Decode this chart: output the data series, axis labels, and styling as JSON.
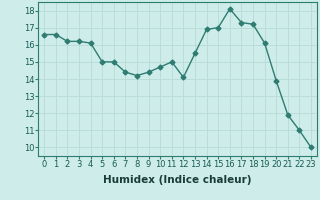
{
  "x": [
    0,
    1,
    2,
    3,
    4,
    5,
    6,
    7,
    8,
    9,
    10,
    11,
    12,
    13,
    14,
    15,
    16,
    17,
    18,
    19,
    20,
    21,
    22,
    23
  ],
  "y": [
    16.6,
    16.6,
    16.2,
    16.2,
    16.1,
    15.0,
    15.0,
    14.4,
    14.2,
    14.4,
    14.7,
    15.0,
    14.1,
    15.5,
    16.9,
    17.0,
    18.1,
    17.3,
    17.2,
    16.1,
    13.9,
    11.9,
    11.0,
    10.0
  ],
  "xlabel": "Humidex (Indice chaleur)",
  "xlim": [
    -0.5,
    23.5
  ],
  "ylim": [
    9.5,
    18.5
  ],
  "yticks": [
    10,
    11,
    12,
    13,
    14,
    15,
    16,
    17,
    18
  ],
  "xticks": [
    0,
    1,
    2,
    3,
    4,
    5,
    6,
    7,
    8,
    9,
    10,
    11,
    12,
    13,
    14,
    15,
    16,
    17,
    18,
    19,
    20,
    21,
    22,
    23
  ],
  "line_color": "#2e7d72",
  "marker": "D",
  "marker_size": 2.5,
  "bg_color": "#ceecea",
  "grid_color": "#b8dbd8",
  "label_fontsize": 7.5,
  "tick_fontsize": 6.0
}
